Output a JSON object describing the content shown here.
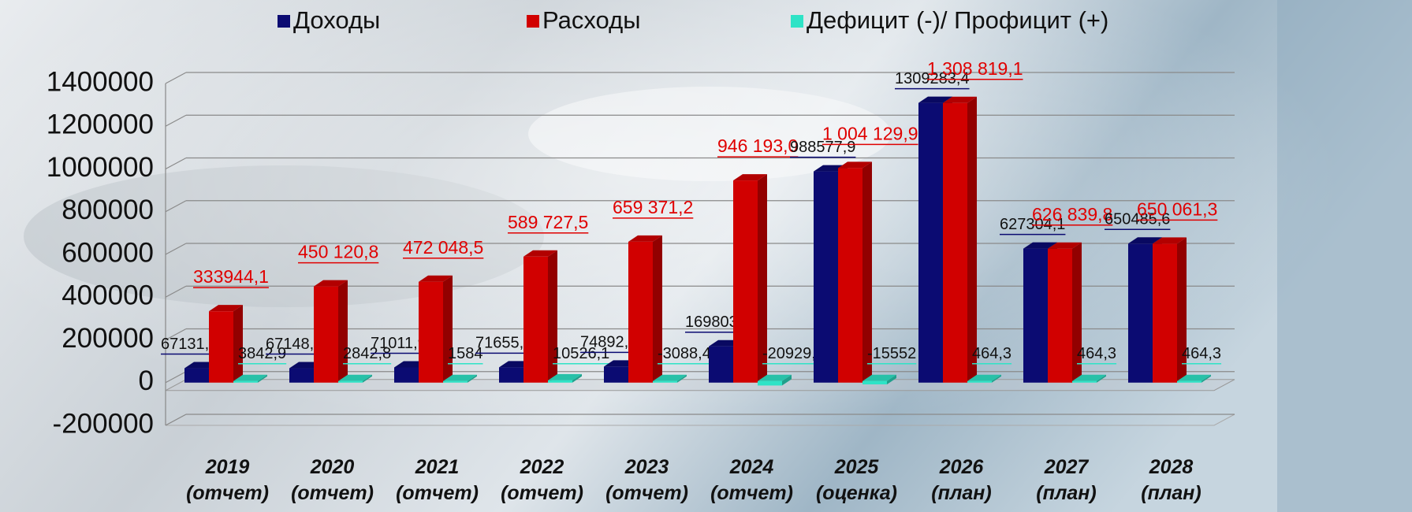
{
  "chart_data": {
    "type": "bar3d",
    "categories": [
      "2019 (отчет)",
      "2020 (отчет)",
      "2021 (отчет)",
      "2022 (отчет)",
      "2023 (отчет)",
      "2024 (отчет)",
      "2025 (оценка)",
      "2026 (план)",
      "2027 (план)",
      "2028 (план)"
    ],
    "series": [
      {
        "name": "Доходы",
        "color": "#0b0b72",
        "values": [
          67131.4,
          67148.6,
          71011.9,
          71655.4,
          74892.2,
          169803.3,
          988577.9,
          1309283.4,
          627304.1,
          650485.6
        ],
        "value_labels": [
          "67131,4",
          "67148,6",
          "71011,9",
          "71655,4",
          "74892,2",
          "169803,3",
          "988577,9",
          "1309283,4",
          "627304,1",
          "650485,6"
        ]
      },
      {
        "name": "Расходы",
        "color": "#d10000",
        "values": [
          333944.1,
          450120.8,
          472048.5,
          589727.5,
          659371.2,
          946193.0,
          1004129.9,
          1308819.1,
          626839.8,
          650061.3
        ],
        "value_labels": [
          "333944,1",
          "450 120,8",
          "472 048,5",
          "589 727,5",
          "659 371,2",
          "946 193,0",
          "1 004 129,9",
          "1 308 819,1",
          "626 839,8",
          "650 061,3"
        ]
      },
      {
        "name": "Дефицит (-)/ Профицит (+)",
        "color": "#2ee3c6",
        "values": [
          3842.9,
          2842.8,
          1584,
          10526.1,
          -3088.4,
          -20929.6,
          -15552,
          464.3,
          464.3,
          464.3
        ],
        "value_labels": [
          "3842,9",
          "2842,8",
          "1584",
          "10526,1",
          "-3088,4",
          "-20929,6",
          "-15552",
          "464,3",
          "464,3",
          "464,3"
        ]
      }
    ],
    "ylim": [
      -200000,
      1400000
    ],
    "yticks": [
      -200000,
      0,
      200000,
      400000,
      600000,
      800000,
      1000000,
      1200000,
      1400000
    ],
    "grid": true,
    "legend": "top"
  }
}
